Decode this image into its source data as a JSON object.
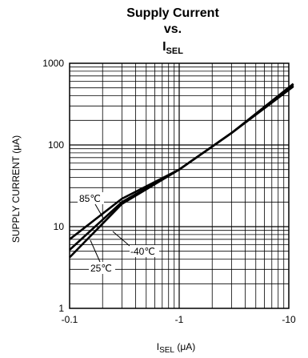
{
  "chart_data": {
    "type": "line",
    "title_lines": [
      "Supply Current",
      "vs."
    ],
    "title_var": {
      "main": "I",
      "sub": "SEL"
    },
    "xlabel": {
      "main": "I",
      "sub": "SEL",
      "unit": " (μA)"
    },
    "ylabel": "SUPPLY CURRENT (μA)",
    "x_scale": "log",
    "y_scale": "log",
    "x_note": "negative values; axis shows |ISEL| increasing left to right",
    "xlim": [
      -0.1,
      -10
    ],
    "ylim": [
      1,
      1000
    ],
    "x_ticks": [
      -0.1,
      -1,
      -10
    ],
    "x_tick_labels": [
      "-0.1",
      "-1",
      "-10"
    ],
    "y_ticks": [
      1,
      10,
      100,
      1000
    ],
    "y_tick_labels": [
      "1",
      "10",
      "100",
      "1000"
    ],
    "grid": true,
    "series": [
      {
        "name": "85℃",
        "color": "#000000",
        "x": [
          -0.1,
          -0.3,
          -1,
          -3,
          -11
        ],
        "y": [
          7,
          22,
          50,
          140,
          520
        ]
      },
      {
        "name": "25℃",
        "color": "#000000",
        "x": [
          -0.1,
          -0.3,
          -1,
          -3,
          -11
        ],
        "y": [
          5.2,
          20,
          50,
          140,
          540
        ]
      },
      {
        "name": "-40℃",
        "color": "#000000",
        "x": [
          -0.1,
          -0.3,
          -1,
          -3,
          -11
        ],
        "y": [
          4.2,
          19,
          50,
          140,
          560
        ]
      }
    ],
    "annotations": [
      {
        "text": "85℃",
        "series": "85℃"
      },
      {
        "text": "-40℃",
        "series": "-40℃"
      },
      {
        "text": "25℃",
        "series": "25℃"
      }
    ]
  }
}
